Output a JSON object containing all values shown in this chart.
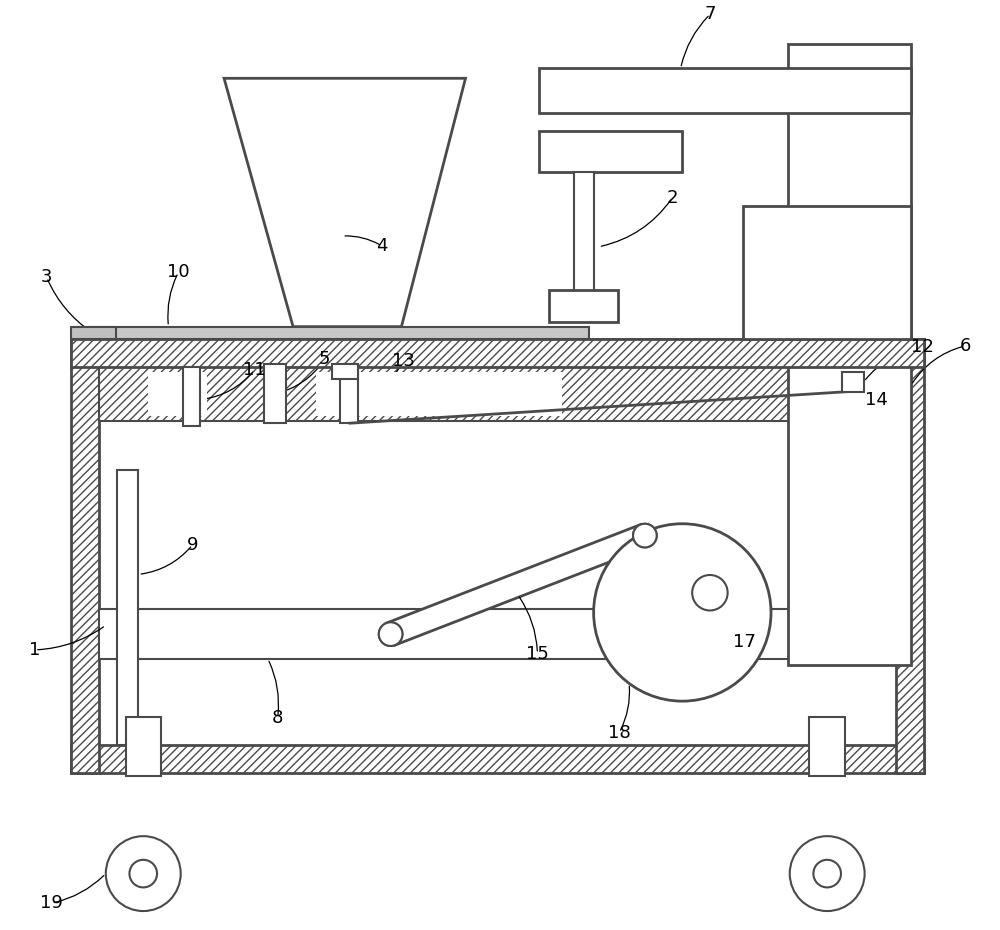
{
  "bg_color": "#ffffff",
  "lc": "#4a4a4a",
  "lw": 1.5,
  "lw2": 2.0,
  "fig_w": 10,
  "fig_h": 9.3
}
